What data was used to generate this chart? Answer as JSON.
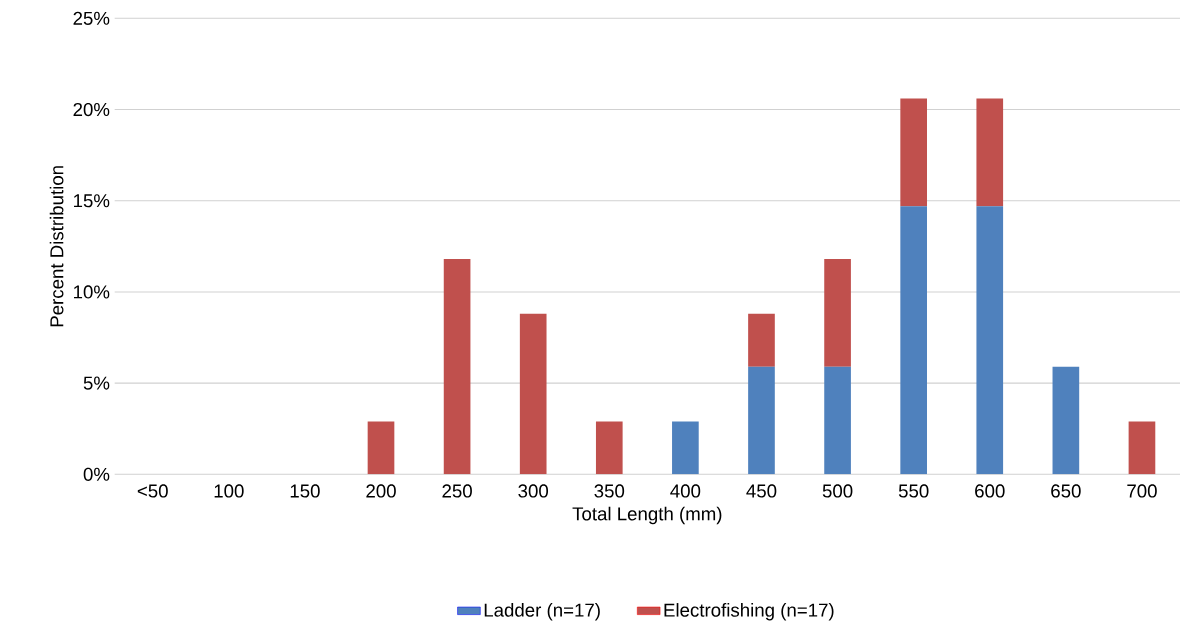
{
  "chart_data": {
    "type": "bar",
    "stacked": true,
    "xlabel": "Total Length (mm)",
    "ylabel": "Percent Distribution",
    "categories": [
      "<50",
      "100",
      "150",
      "200",
      "250",
      "300",
      "350",
      "400",
      "450",
      "500",
      "550",
      "600",
      "650",
      "700"
    ],
    "series": [
      {
        "name": "Ladder (n=17)",
        "color": "#4f81bd",
        "values": [
          0,
          0,
          0,
          0,
          0,
          0,
          0,
          2.9,
          5.9,
          5.9,
          14.7,
          14.7,
          5.9,
          0
        ]
      },
      {
        "name": "Electrofishing (n=17)",
        "color": "#c0504d",
        "values": [
          0,
          0,
          0,
          2.9,
          11.8,
          8.8,
          2.9,
          0,
          2.9,
          5.9,
          5.9,
          5.9,
          0,
          2.9
        ]
      }
    ],
    "ylim": [
      0,
      25
    ],
    "yticks": [
      {
        "value": 0,
        "label": "0%"
      },
      {
        "value": 5,
        "label": "5%"
      },
      {
        "value": 10,
        "label": "10%"
      },
      {
        "value": 15,
        "label": "15%"
      },
      {
        "value": 20,
        "label": "20%"
      },
      {
        "value": 25,
        "label": "25%"
      }
    ],
    "grid": "y",
    "legend": "bottom"
  }
}
